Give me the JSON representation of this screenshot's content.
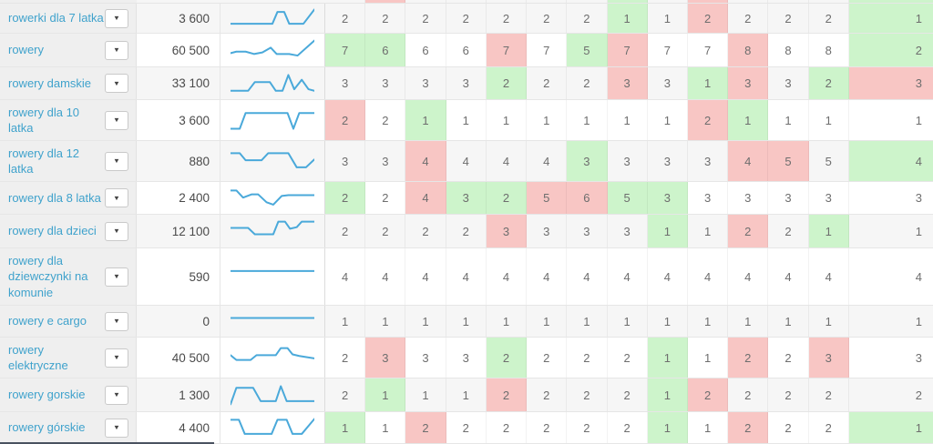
{
  "table": {
    "icons": {
      "caret_down": "▼"
    },
    "colors": {
      "up_bg": "#cdf4cb",
      "down_bg": "#f8c6c4",
      "sparkline": "#4aa9da",
      "keyword_link": "#3fa2cc",
      "row_alt_bg": "#f6f6f6",
      "keyword_col_bg": "#efefef"
    },
    "top_partial_row": {
      "cells": [
        "",
        "r",
        "",
        "",
        "",
        "",
        "",
        "g",
        "",
        "r",
        "",
        "",
        "",
        "g"
      ]
    },
    "rows": [
      {
        "keyword": "rowerki dla 7 latka",
        "volume": "3 600",
        "sparkline": [
          [
            0,
            22
          ],
          [
            50,
            22
          ],
          [
            56,
            7
          ],
          [
            64,
            7
          ],
          [
            70,
            22
          ],
          [
            87,
            22
          ],
          [
            100,
            4
          ]
        ],
        "cells": [
          "2",
          "2",
          "2",
          "2",
          "2",
          "2",
          "2",
          "1g",
          "1",
          "2r",
          "2",
          "2",
          "2",
          "1g"
        ]
      },
      {
        "keyword": "rowery",
        "volume": "60 500",
        "sparkline": [
          [
            0,
            19
          ],
          [
            7,
            17
          ],
          [
            18,
            17
          ],
          [
            28,
            20
          ],
          [
            38,
            18
          ],
          [
            48,
            12
          ],
          [
            55,
            20
          ],
          [
            70,
            20
          ],
          [
            80,
            22
          ],
          [
            100,
            3
          ]
        ],
        "cells": [
          "7g",
          "6g",
          "6",
          "6",
          "7r",
          "7",
          "5g",
          "7r",
          "7",
          "7",
          "8r",
          "8",
          "8",
          "2g"
        ]
      },
      {
        "keyword": "rowery damskie",
        "volume": "33 100",
        "sparkline": [
          [
            0,
            24
          ],
          [
            21,
            24
          ],
          [
            29,
            13
          ],
          [
            47,
            13
          ],
          [
            54,
            24
          ],
          [
            62,
            24
          ],
          [
            69,
            4
          ],
          [
            76,
            22
          ],
          [
            85,
            10
          ],
          [
            93,
            22
          ],
          [
            100,
            24
          ]
        ],
        "cells": [
          "3",
          "3",
          "3",
          "3",
          "2g",
          "2",
          "2",
          "3r",
          "3",
          "1g",
          "3r",
          "3",
          "2g",
          "3r"
        ]
      },
      {
        "keyword": "rowery dla 10\nlatka",
        "volume": "3 600",
        "sparkline": [
          [
            0,
            26
          ],
          [
            11,
            26
          ],
          [
            18,
            6
          ],
          [
            68,
            6
          ],
          [
            75,
            26
          ],
          [
            82,
            6
          ],
          [
            100,
            6
          ]
        ],
        "cells": [
          "2r",
          "2",
          "1g",
          "1",
          "1",
          "1",
          "1",
          "1",
          "1",
          "2r",
          "1g",
          "1",
          "1",
          "1"
        ]
      },
      {
        "keyword": "rowery dla 12\nlatka",
        "volume": "880",
        "sparkline": [
          [
            0,
            5
          ],
          [
            11,
            5
          ],
          [
            18,
            14
          ],
          [
            37,
            14
          ],
          [
            45,
            5
          ],
          [
            69,
            5
          ],
          [
            79,
            23
          ],
          [
            90,
            23
          ],
          [
            100,
            13
          ]
        ],
        "cells": [
          "3",
          "3",
          "4r",
          "4",
          "4",
          "4",
          "3g",
          "3",
          "3",
          "3",
          "4r",
          "5r",
          "5",
          "4g"
        ]
      },
      {
        "keyword": "rowery dla 8 latka",
        "volume": "2 400",
        "sparkline": [
          [
            0,
            5
          ],
          [
            7,
            5
          ],
          [
            15,
            14
          ],
          [
            25,
            10
          ],
          [
            33,
            10
          ],
          [
            43,
            20
          ],
          [
            51,
            23
          ],
          [
            61,
            12
          ],
          [
            69,
            11
          ],
          [
            100,
            11
          ]
        ],
        "cells": [
          "2g",
          "2",
          "4r",
          "3g",
          "2g",
          "5r",
          "6r",
          "5g",
          "3g",
          "3",
          "3",
          "3",
          "3",
          "3"
        ]
      },
      {
        "keyword": "rowery dla dzieci",
        "volume": "12 100",
        "sparkline": [
          [
            0,
            11
          ],
          [
            21,
            11
          ],
          [
            29,
            19
          ],
          [
            51,
            19
          ],
          [
            57,
            3
          ],
          [
            65,
            3
          ],
          [
            71,
            12
          ],
          [
            79,
            10
          ],
          [
            85,
            3
          ],
          [
            100,
            3
          ]
        ],
        "cells": [
          "2",
          "2",
          "2",
          "2",
          "3r",
          "3",
          "3",
          "3",
          "1g",
          "1",
          "2r",
          "2",
          "1g",
          "1"
        ]
      },
      {
        "keyword": "rowery dla\ndziewczynki na\nkomunie",
        "volume": "590",
        "sparkline": [
          [
            0,
            8
          ],
          [
            100,
            8
          ]
        ],
        "cells": [
          "4",
          "4",
          "4",
          "4",
          "4",
          "4",
          "4",
          "4",
          "4",
          "4",
          "4",
          "4",
          "4",
          "4"
        ]
      },
      {
        "keyword": "rowery e cargo",
        "volume": "0",
        "sparkline": [
          [
            0,
            11
          ],
          [
            100,
            11
          ]
        ],
        "cells": [
          "1",
          "1",
          "1",
          "1",
          "1",
          "1",
          "1",
          "1",
          "1",
          "1",
          "1",
          "1",
          "1",
          "1"
        ]
      },
      {
        "keyword": "rowery\nelektryczne",
        "volume": "40 500",
        "sparkline": [
          [
            0,
            12
          ],
          [
            7,
            18
          ],
          [
            24,
            18
          ],
          [
            31,
            12
          ],
          [
            54,
            12
          ],
          [
            60,
            3
          ],
          [
            68,
            3
          ],
          [
            74,
            11
          ],
          [
            82,
            13
          ],
          [
            100,
            16
          ]
        ],
        "cells": [
          "2",
          "3r",
          "3",
          "3",
          "2g",
          "2",
          "2",
          "2",
          "1g",
          "1",
          "2r",
          "2",
          "3r",
          "3"
        ]
      },
      {
        "keyword": "rowery gorskie",
        "volume": "1 300",
        "sparkline": [
          [
            0,
            27
          ],
          [
            7,
            6
          ],
          [
            27,
            6
          ],
          [
            36,
            23
          ],
          [
            54,
            23
          ],
          [
            60,
            4
          ],
          [
            67,
            23
          ],
          [
            100,
            23
          ]
        ],
        "cells": [
          "2",
          "1g",
          "1",
          "1",
          "2r",
          "2",
          "2",
          "2",
          "1g",
          "2r",
          "2",
          "2",
          "2",
          "2"
        ]
      },
      {
        "keyword": "rowery górskie",
        "volume": "4 400",
        "sparkline": [
          [
            0,
            5
          ],
          [
            10,
            5
          ],
          [
            17,
            23
          ],
          [
            49,
            23
          ],
          [
            56,
            5
          ],
          [
            67,
            5
          ],
          [
            74,
            23
          ],
          [
            85,
            23
          ],
          [
            100,
            4
          ]
        ],
        "cells": [
          "1g",
          "1",
          "2r",
          "2",
          "2",
          "2",
          "2",
          "2",
          "1g",
          "1",
          "2r",
          "2",
          "2",
          "1g"
        ]
      }
    ]
  }
}
